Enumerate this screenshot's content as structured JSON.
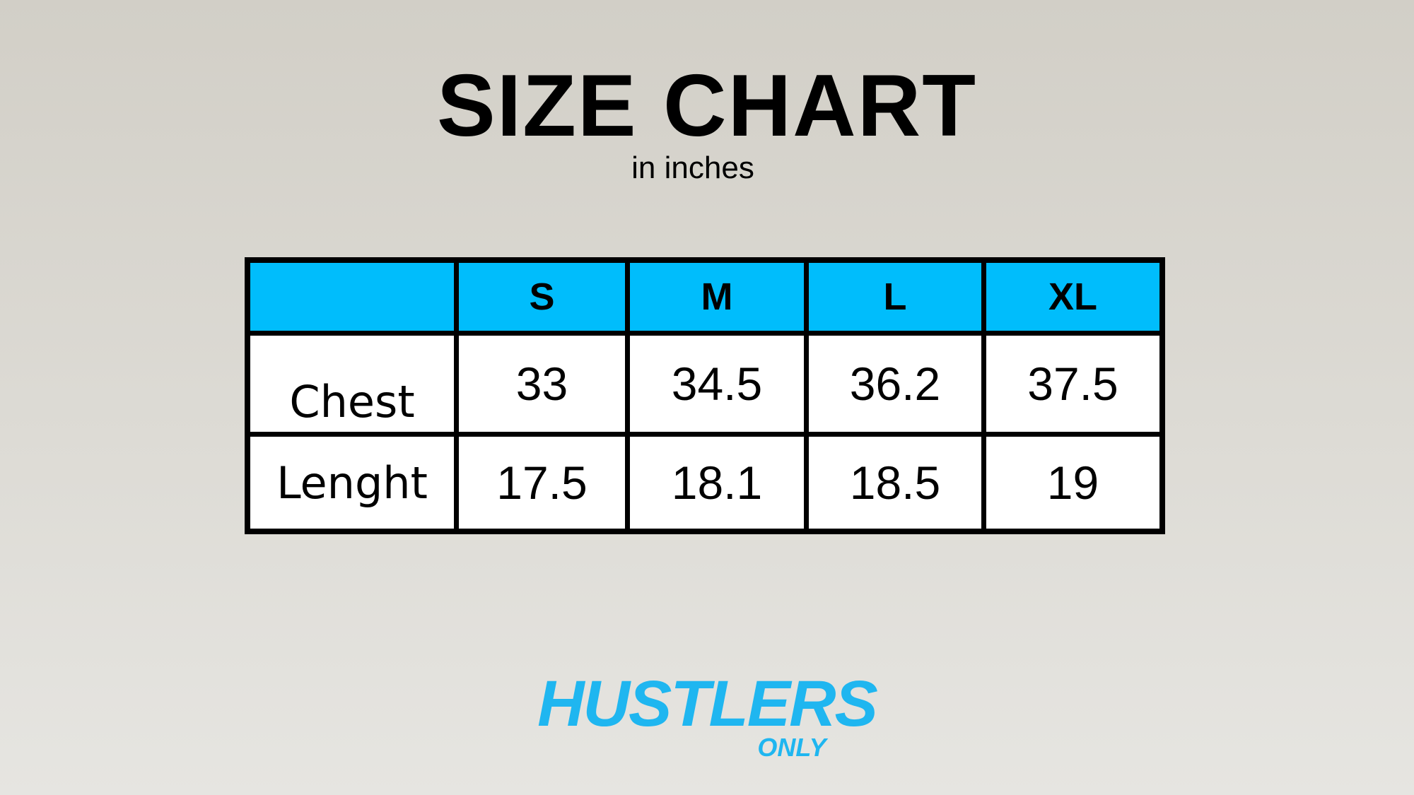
{
  "header": {
    "title": "SIZE CHART",
    "subtitle": "in inches"
  },
  "table": {
    "columns": [
      "S",
      "M",
      "L",
      "XL"
    ],
    "rows": [
      {
        "label": "Chest",
        "values": [
          33,
          34.5,
          36.2,
          37.5
        ]
      },
      {
        "label": "Lenght",
        "values": [
          17.5,
          18.1,
          18.5,
          19
        ]
      }
    ]
  },
  "logo": {
    "main": "HUSTLERS",
    "sub": "ONLY"
  }
}
